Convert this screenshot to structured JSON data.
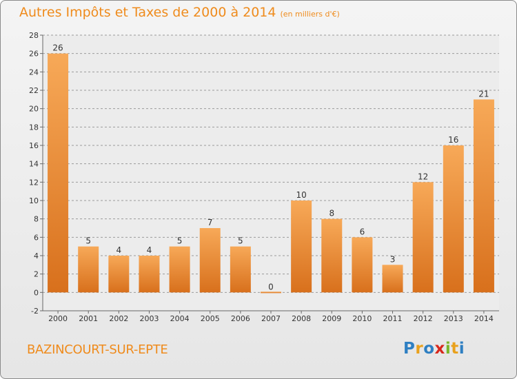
{
  "header": {
    "title": "Autres Impôts et Taxes de 2000 à 2014",
    "unit": "(en milliers d'€)"
  },
  "footer": {
    "commune": "BAZINCOURT-SUR-EPTE",
    "logo_letters": [
      "P",
      "r",
      "o",
      "x",
      "i",
      "t",
      "i"
    ],
    "logo_colors": [
      "#2e7fc2",
      "#e9a11c",
      "#2e7fc2",
      "#d7281c",
      "#7bb62a",
      "#e9a11c",
      "#2e7fc2"
    ]
  },
  "colors": {
    "bar_light": "#f7a958",
    "bar_dark": "#d8701c",
    "text_accent": "#ef8b1c",
    "grid": "#9a9a9a"
  },
  "chart_data": {
    "type": "bar",
    "title": "Autres Impôts et Taxes de 2000 à 2014",
    "subtitle": "(en milliers d'€)",
    "categories": [
      "2000",
      "2001",
      "2002",
      "2003",
      "2004",
      "2005",
      "2006",
      "2007",
      "2008",
      "2009",
      "2010",
      "2011",
      "2012",
      "2013",
      "2014"
    ],
    "values": [
      26,
      5,
      4,
      4,
      5,
      7,
      5,
      0,
      10,
      8,
      6,
      3,
      12,
      16,
      21
    ],
    "ylim": [
      -2,
      28
    ],
    "yticks": [
      -2,
      0,
      2,
      4,
      6,
      8,
      10,
      12,
      14,
      16,
      18,
      20,
      22,
      24,
      26,
      28
    ],
    "grid": "horizontal dashed",
    "xlabel": "",
    "ylabel": ""
  }
}
